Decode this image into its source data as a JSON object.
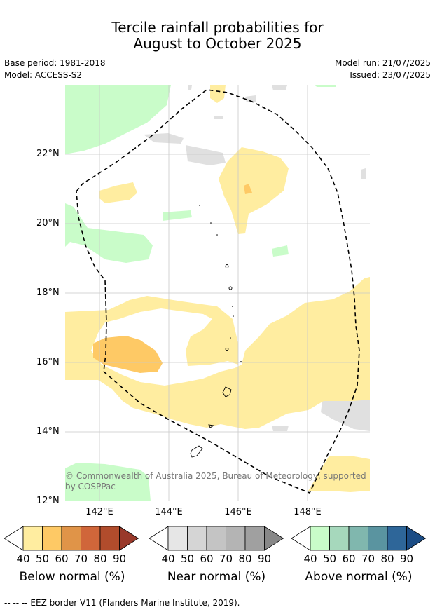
{
  "title": {
    "line1": "Tercile rainfall probabilities for",
    "line2": "August to October 2025"
  },
  "meta": {
    "base_period": "Base period: 1981-2018",
    "model": "Model: ACCESS-S2",
    "model_run": "Model run: 21/07/2025",
    "issued": "Issued: 23/07/2025"
  },
  "map": {
    "lat_labels": [
      "22°N",
      "20°N",
      "18°N",
      "16°N",
      "14°N",
      "12°N"
    ],
    "lon_labels": [
      "142°E",
      "144°E",
      "146°E",
      "148°E"
    ],
    "copyright_line1": "© Commonwealth of Australia 2025, Bureau of Meteorology, supported",
    "copyright_line2": "by COSPPac",
    "colors": {
      "below_40": "#ffeda0",
      "below_50": "#fec965",
      "above_40": "#c9fcc9",
      "near_40": "#e0e0e0",
      "grid": "#c8c8c8"
    }
  },
  "legend": {
    "below": {
      "label": "Below normal (%)",
      "colors": [
        "#ffeda0",
        "#fec965",
        "#e09448",
        "#d0663a",
        "#b14c2c",
        "#99392a"
      ],
      "ticks": [
        "40",
        "50",
        "60",
        "70",
        "80",
        "90"
      ]
    },
    "near": {
      "label": "Near normal (%)",
      "colors": [
        "#e6e6e6",
        "#d5d5d5",
        "#c4c4c4",
        "#b4b4b4",
        "#a0a0a0",
        "#888888"
      ],
      "ticks": [
        "40",
        "50",
        "60",
        "70",
        "80",
        "90"
      ]
    },
    "above": {
      "label": "Above normal (%)",
      "colors": [
        "#c9fcc9",
        "#a6d8bc",
        "#80b7ae",
        "#5a94a0",
        "#2e6699",
        "#1b4c85"
      ],
      "ticks": [
        "40",
        "50",
        "60",
        "70",
        "80",
        "90"
      ]
    }
  },
  "footnote": "--  --  -- EEZ border V11 (Flanders Marine Institute, 2019)."
}
